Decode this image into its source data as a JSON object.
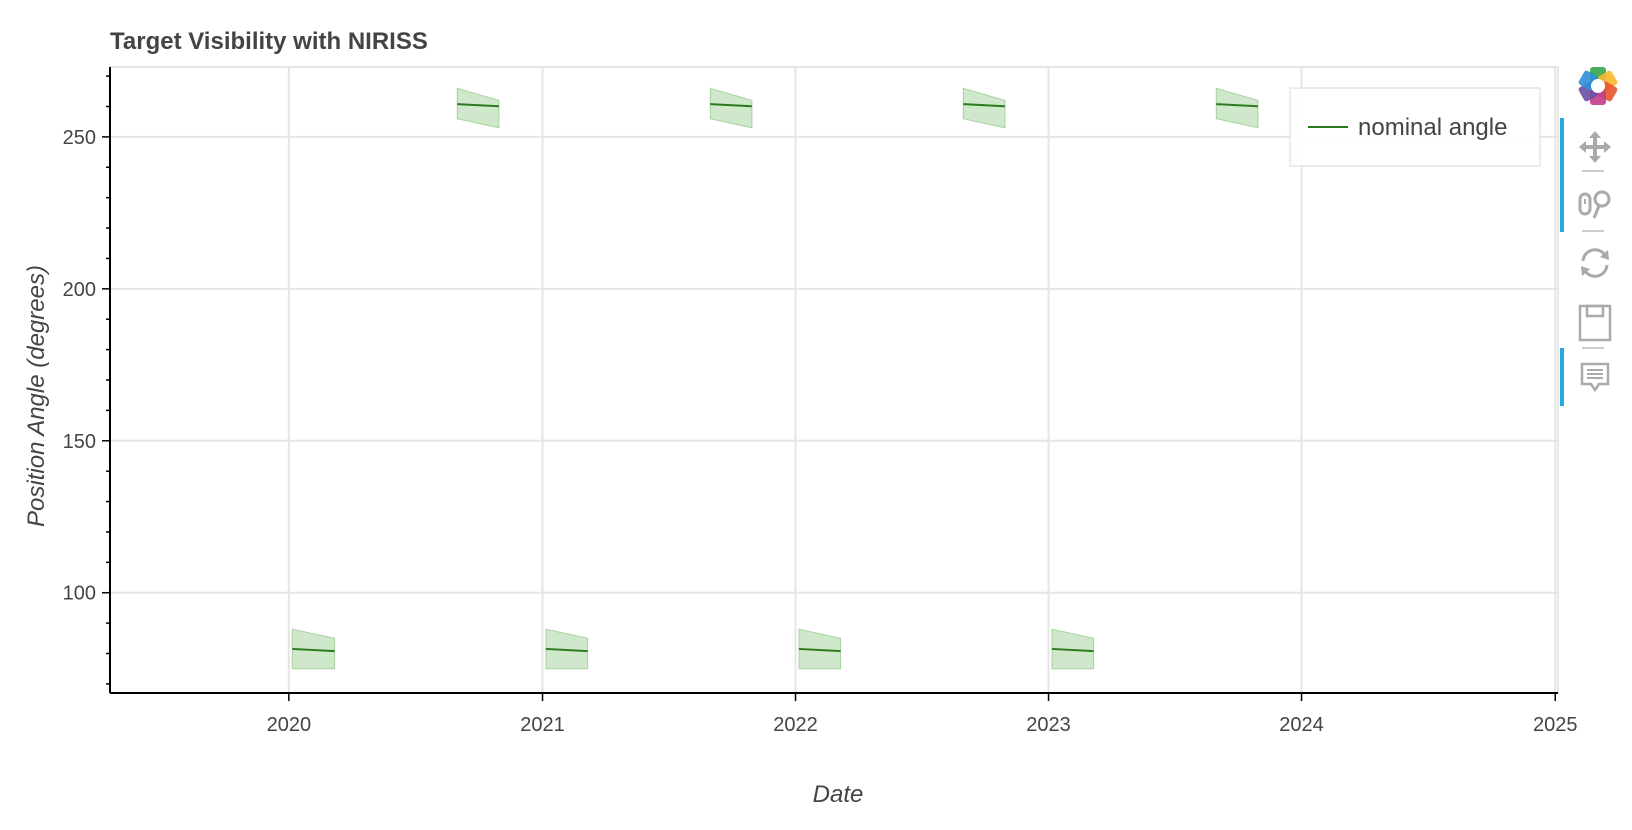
{
  "chart_data": {
    "type": "line",
    "title": "Target Visibility with NIRISS",
    "xlabel": "Date",
    "ylabel": "Position Angle (degrees)",
    "xlim": [
      "2019-04-18",
      "2025-01-05"
    ],
    "ylim": [
      67,
      273
    ],
    "x_ticks": [
      "2020",
      "2021",
      "2022",
      "2023",
      "2024",
      "2025"
    ],
    "y_ticks": [
      100,
      150,
      200,
      250
    ],
    "grid": true,
    "legend_position": "top-right",
    "series": [
      {
        "name": "nominal angle",
        "color": "#2b7a1e",
        "band_color": "#a8d3a0",
        "windows": [
          {
            "start": "2020-01-06",
            "end": "2020-03-07",
            "angle_start": 81.5,
            "angle_end": 80.8,
            "band_start": [
              75,
              88
            ],
            "band_end": [
              75,
              85
            ]
          },
          {
            "start": "2020-08-31",
            "end": "2020-10-30",
            "angle_start": 260.8,
            "angle_end": 260.1,
            "band_start": [
              256,
              266
            ],
            "band_end": [
              253,
              262
            ]
          },
          {
            "start": "2021-01-06",
            "end": "2021-03-07",
            "angle_start": 81.5,
            "angle_end": 80.8,
            "band_start": [
              75,
              88
            ],
            "band_end": [
              75,
              85
            ]
          },
          {
            "start": "2021-08-31",
            "end": "2021-10-30",
            "angle_start": 260.8,
            "angle_end": 260.1,
            "band_start": [
              256,
              266
            ],
            "band_end": [
              253,
              262
            ]
          },
          {
            "start": "2022-01-06",
            "end": "2022-03-07",
            "angle_start": 81.5,
            "angle_end": 80.8,
            "band_start": [
              75,
              88
            ],
            "band_end": [
              75,
              85
            ]
          },
          {
            "start": "2022-08-31",
            "end": "2022-10-30",
            "angle_start": 260.8,
            "angle_end": 260.1,
            "band_start": [
              256,
              266
            ],
            "band_end": [
              253,
              262
            ]
          },
          {
            "start": "2023-01-06",
            "end": "2023-03-07",
            "angle_start": 81.5,
            "angle_end": 80.8,
            "band_start": [
              75,
              88
            ],
            "band_end": [
              75,
              85
            ]
          },
          {
            "start": "2023-08-31",
            "end": "2023-10-30",
            "angle_start": 260.8,
            "angle_end": 260.1,
            "band_start": [
              256,
              266
            ],
            "band_end": [
              253,
              262
            ]
          }
        ]
      }
    ]
  },
  "toolbar": {
    "logo": "bokeh-logo-icon",
    "tools": [
      {
        "name": "pan-tool",
        "icon": "pan-icon",
        "active": true
      },
      {
        "name": "wheel-zoom-tool",
        "icon": "wheel-zoom-icon",
        "active": true
      },
      {
        "name": "reset-tool",
        "icon": "reset-icon",
        "active": false
      },
      {
        "name": "save-tool",
        "icon": "save-icon",
        "active": false
      },
      {
        "name": "hover-tool",
        "icon": "hover-icon",
        "active": true
      }
    ]
  }
}
